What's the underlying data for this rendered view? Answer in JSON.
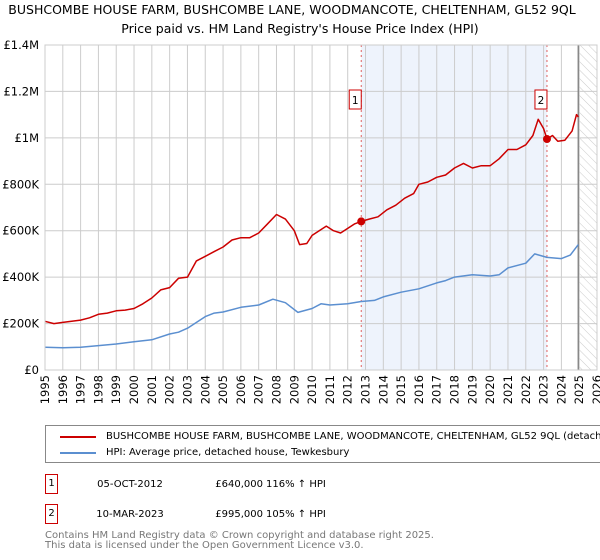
{
  "title": "BUSHCOMBE HOUSE FARM, BUSHCOMBE LANE, WOODMANCOTE, CHELTENHAM, GL52 9QL",
  "subtitle": "Price paid vs. HM Land Registry's House Price Index (HPI)",
  "chart_data": {
    "type": "line",
    "title": "Price paid vs. HM Land Registry's House Price Index (HPI)",
    "xlim": [
      1995,
      2026
    ],
    "ylim": [
      0,
      1400000
    ],
    "grid": true,
    "x_ticks": [
      "1995",
      "1996",
      "1997",
      "1998",
      "1999",
      "2000",
      "2001",
      "2002",
      "2003",
      "2004",
      "2005",
      "2006",
      "2007",
      "2008",
      "2009",
      "2010",
      "2011",
      "2012",
      "2013",
      "2014",
      "2015",
      "2016",
      "2017",
      "2018",
      "2019",
      "2020",
      "2021",
      "2022",
      "2023",
      "2024",
      "2025",
      "2026"
    ],
    "y_ticks": [
      {
        "v": 0,
        "label": "£0"
      },
      {
        "v": 200000,
        "label": "£200K"
      },
      {
        "v": 400000,
        "label": "£400K"
      },
      {
        "v": 600000,
        "label": "£600K"
      },
      {
        "v": 800000,
        "label": "£800K"
      },
      {
        "v": 1000000,
        "label": "£1M"
      },
      {
        "v": 1200000,
        "label": "£1.2M"
      },
      {
        "v": 1400000,
        "label": "£1.4M"
      }
    ],
    "shaded_range": [
      2012.76,
      2023.19
    ],
    "hatched_from": 2024.95,
    "series": [
      {
        "name": "BUSHCOMBE HOUSE FARM, BUSHCOMBE LANE, WOODMANCOTE, CHELTENHAM, GL52 9QL (detached house)",
        "color": "#cc0000",
        "x": [
          1995,
          1995.5,
          1996,
          1996.5,
          1997,
          1997.5,
          1998,
          1998.5,
          1999,
          1999.5,
          2000,
          2000.5,
          2001,
          2001.5,
          2002,
          2002.5,
          2003,
          2003.5,
          2004,
          2004.5,
          2005,
          2005.5,
          2006,
          2006.5,
          2007,
          2007.5,
          2008,
          2008.5,
          2009,
          2009.3,
          2009.7,
          2010,
          2010.4,
          2010.8,
          2011.2,
          2011.6,
          2012,
          2012.4,
          2012.76,
          2013.2,
          2013.7,
          2014.2,
          2014.7,
          2015.2,
          2015.7,
          2016,
          2016.5,
          2017,
          2017.5,
          2018,
          2018.5,
          2019,
          2019.5,
          2020,
          2020.5,
          2021,
          2021.5,
          2022,
          2022.4,
          2022.7,
          2023.0,
          2023.19,
          2023.5,
          2023.8,
          2024.2,
          2024.6,
          2024.85,
          2024.95
        ],
        "y": [
          210000,
          200000,
          205000,
          210000,
          215000,
          225000,
          240000,
          245000,
          255000,
          258000,
          265000,
          285000,
          310000,
          345000,
          355000,
          395000,
          400000,
          470000,
          490000,
          510000,
          530000,
          560000,
          570000,
          570000,
          590000,
          630000,
          670000,
          650000,
          600000,
          540000,
          545000,
          580000,
          600000,
          620000,
          600000,
          590000,
          610000,
          630000,
          640000,
          650000,
          660000,
          690000,
          710000,
          740000,
          760000,
          800000,
          810000,
          830000,
          840000,
          870000,
          890000,
          870000,
          880000,
          880000,
          910000,
          950000,
          950000,
          970000,
          1010000,
          1080000,
          1040000,
          995000,
          1010000,
          985000,
          990000,
          1030000,
          1100000,
          1090000
        ]
      },
      {
        "name": "HPI: Average price, detached house, Tewkesbury",
        "color": "#5b8fd0",
        "x": [
          1995,
          1996,
          1997,
          1998,
          1999,
          2000,
          2001,
          2002,
          2002.5,
          2003,
          2004,
          2004.5,
          2005,
          2006,
          2007,
          2007.8,
          2008.5,
          2009.2,
          2010,
          2010.5,
          2011,
          2012,
          2012.76,
          2013.5,
          2014,
          2015,
          2016,
          2017,
          2017.5,
          2018,
          2019,
          2020,
          2020.5,
          2021,
          2022,
          2022.5,
          2023.19,
          2024,
          2024.5,
          2024.95
        ],
        "y": [
          98000,
          96000,
          98000,
          105000,
          112000,
          122000,
          130000,
          155000,
          163000,
          180000,
          230000,
          245000,
          250000,
          270000,
          280000,
          305000,
          290000,
          248000,
          265000,
          285000,
          280000,
          285000,
          295000,
          300000,
          315000,
          335000,
          350000,
          375000,
          385000,
          400000,
          410000,
          405000,
          410000,
          440000,
          460000,
          500000,
          485000,
          480000,
          495000,
          540000
        ]
      }
    ],
    "annotations": [
      {
        "label": "1",
        "x": 2012.76,
        "y": 640000
      },
      {
        "label": "2",
        "x": 2023.19,
        "y": 995000
      }
    ]
  },
  "legend": {
    "items": [
      {
        "label": "BUSHCOMBE HOUSE FARM, BUSHCOMBE LANE, WOODMANCOTE, CHELTENHAM, GL52 9QL (detached house)",
        "color": "#cc0000"
      },
      {
        "label": "HPI: Average price, detached house, Tewkesbury",
        "color": "#5b8fd0"
      }
    ]
  },
  "sales": [
    {
      "num": "1",
      "date": "05-OCT-2012",
      "price": "£640,000",
      "hpi": "116% ↑ HPI"
    },
    {
      "num": "2",
      "date": "10-MAR-2023",
      "price": "£995,000",
      "hpi": "105% ↑ HPI"
    }
  ],
  "footer": {
    "line1": "Contains HM Land Registry data © Crown copyright and database right 2025.",
    "line2": "This data is licensed under the Open Government Licence v3.0."
  }
}
